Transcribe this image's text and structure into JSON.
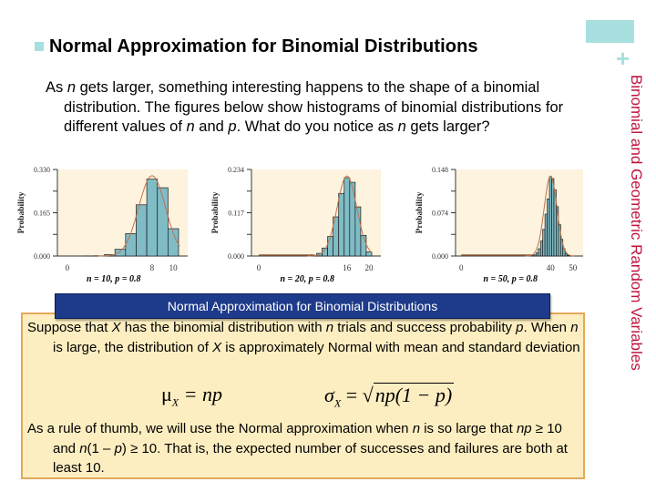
{
  "slide": {
    "title": "Normal Approximation for Binomial Distributions",
    "side_label": "Binomial and Geometric Random Variables",
    "corner_plus": "+",
    "colors": {
      "accent_teal": "#a8e0e0",
      "side_label_red": "#c0143c",
      "box_header_blue": "#1e3a8a",
      "box_fill": "#fdeec1",
      "box_border": "#e3a95a",
      "histogram_bar": "#7fbcc6",
      "plot_background": "#fdf3de",
      "normal_curve": "#c0724a"
    }
  },
  "intro": {
    "segments": [
      {
        "text": "As ",
        "italic": false
      },
      {
        "text": "n",
        "italic": true
      },
      {
        "text": " gets larger, something interesting happens to the shape of a binomial distribution.  The figures below show histograms of binomial distributions for different values of ",
        "italic": false
      },
      {
        "text": "n",
        "italic": true
      },
      {
        "text": " and ",
        "italic": false
      },
      {
        "text": "p",
        "italic": true
      },
      {
        "text": ". What do you notice as ",
        "italic": false
      },
      {
        "text": "n",
        "italic": true
      },
      {
        "text": " gets larger?",
        "italic": false
      }
    ]
  },
  "chart_data": [
    {
      "type": "bar",
      "title": "",
      "caption": "n = 10, p = 0.8",
      "xlabel": "",
      "ylabel": "Probability",
      "yticks": [
        "0.000",
        "0.165",
        "0.330"
      ],
      "xticks": [
        "0",
        "8",
        "10"
      ],
      "ylim": [
        0,
        0.33
      ],
      "xlim": [
        0,
        10
      ],
      "categories": [
        0,
        1,
        2,
        3,
        4,
        5,
        6,
        7,
        8,
        9,
        10
      ],
      "values": [
        0.0,
        0.0,
        0.0001,
        0.0008,
        0.0055,
        0.0264,
        0.0881,
        0.2013,
        0.302,
        0.2684,
        0.1074
      ],
      "overlay": "normal curve"
    },
    {
      "type": "bar",
      "title": "",
      "caption": "n = 20, p = 0.8",
      "xlabel": "",
      "ylabel": "Probability",
      "yticks": [
        "0.000",
        "0.117",
        "0.234"
      ],
      "xticks": [
        "0",
        "16",
        "20"
      ],
      "ylim": [
        0,
        0.234
      ],
      "xlim": [
        0,
        20
      ],
      "categories": [
        10,
        11,
        12,
        13,
        14,
        15,
        16,
        17,
        18,
        19,
        20
      ],
      "values": [
        0.002,
        0.0074,
        0.0222,
        0.0545,
        0.1091,
        0.1746,
        0.2182,
        0.2054,
        0.1369,
        0.0576,
        0.0115
      ],
      "overlay": "normal curve"
    },
    {
      "type": "bar",
      "title": "",
      "caption": "n = 50, p = 0.8",
      "xlabel": "",
      "ylabel": "Probability",
      "yticks": [
        "0.000",
        "0.074",
        "0.148"
      ],
      "xticks": [
        "0",
        "40",
        "50"
      ],
      "ylim": [
        0,
        0.148
      ],
      "xlim": [
        0,
        50
      ],
      "categories": [
        32,
        33,
        34,
        35,
        36,
        37,
        38,
        39,
        40,
        41,
        42,
        43,
        44,
        45,
        46,
        47,
        48,
        49,
        50
      ],
      "values": [
        0.0006,
        0.002,
        0.0055,
        0.0128,
        0.0264,
        0.0469,
        0.0739,
        0.1007,
        0.1398,
        0.1364,
        0.1169,
        0.087,
        0.0554,
        0.0295,
        0.0128,
        0.0044,
        0.0011,
        0.0002,
        0.0
      ],
      "overlay": "normal curve"
    }
  ],
  "box": {
    "header": "Normal Approximation for Binomial Distributions",
    "para1": [
      {
        "text": "Suppose that ",
        "italic": false
      },
      {
        "text": "X",
        "italic": true
      },
      {
        "text": " has the binomial distribution with ",
        "italic": false
      },
      {
        "text": "n",
        "italic": true
      },
      {
        "text": " trials and success probability ",
        "italic": false
      },
      {
        "text": "p",
        "italic": true
      },
      {
        "text": ". When ",
        "italic": false
      },
      {
        "text": "n",
        "italic": true
      },
      {
        "text": " is large, the distribution of ",
        "italic": false
      },
      {
        "text": "X",
        "italic": true
      },
      {
        "text": " is approximately Normal with mean and standard deviation",
        "italic": false
      }
    ],
    "formula_mean": {
      "symbol": "μ",
      "sub": "X",
      "rhs": " = np"
    },
    "formula_sd": {
      "symbol": "σ",
      "sub": "X",
      "eq": " = ",
      "radicand": "np(1 − p)"
    },
    "para2": [
      {
        "text": "As a rule of thumb, we will use the Normal approximation when ",
        "italic": false
      },
      {
        "text": "n",
        "italic": true
      },
      {
        "text": " is so large that ",
        "italic": false
      },
      {
        "text": "np",
        "italic": true
      },
      {
        "text": " ≥ 10 and ",
        "italic": false
      },
      {
        "text": "n",
        "italic": true
      },
      {
        "text": "(1 – ",
        "italic": false
      },
      {
        "text": "p",
        "italic": true
      },
      {
        "text": ") ≥ 10.  That is, the expected number of successes and failures are both at least 10.",
        "italic": false
      }
    ]
  }
}
